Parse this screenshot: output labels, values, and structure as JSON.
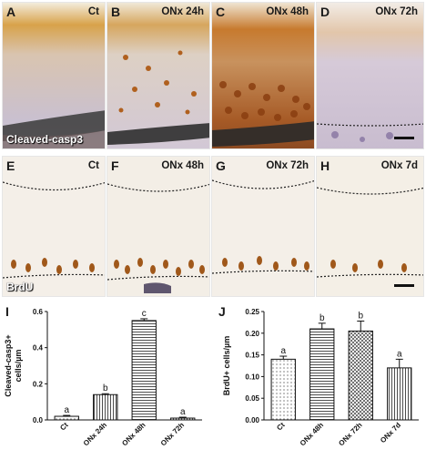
{
  "figure": {
    "row1": {
      "stain": "Cleaved-casp3",
      "panels": [
        {
          "letter": "A",
          "condition": "Ct"
        },
        {
          "letter": "B",
          "condition": "ONx 24h"
        },
        {
          "letter": "C",
          "condition": "ONx 48h"
        },
        {
          "letter": "D",
          "condition": "ONx 72h"
        }
      ]
    },
    "row2": {
      "stain": "BrdU",
      "panels": [
        {
          "letter": "E",
          "condition": "Ct"
        },
        {
          "letter": "F",
          "condition": "ONx 48h"
        },
        {
          "letter": "G",
          "condition": "ONx 72h"
        },
        {
          "letter": "H",
          "condition": "ONx 7d"
        }
      ]
    }
  },
  "chart_data": [
    {
      "letter": "I",
      "type": "bar",
      "categories": [
        "Ct",
        "ONx 24h",
        "ONx 48h",
        "ONx 72h"
      ],
      "values": [
        0.02,
        0.14,
        0.55,
        0.01
      ],
      "errors": [
        0.005,
        0.005,
        0.01,
        0.005
      ],
      "significance": [
        "a",
        "b",
        "c",
        "a"
      ],
      "patterns": [
        "dots",
        "vertical",
        "horizontal",
        "vertical"
      ],
      "ylabel_lines": [
        "Cleaved-casp3+",
        "cells/µm"
      ],
      "ylim": [
        0,
        0.6
      ],
      "yticks": [
        0.0,
        0.2,
        0.4,
        0.6
      ],
      "ytick_labels": [
        "0.0",
        "0.2",
        "0.4",
        "0.6"
      ]
    },
    {
      "letter": "J",
      "type": "bar",
      "categories": [
        "Ct",
        "ONx 48h",
        "ONx 72h",
        "ONx 7d"
      ],
      "values": [
        0.14,
        0.21,
        0.205,
        0.12
      ],
      "errors": [
        0.007,
        0.013,
        0.023,
        0.02
      ],
      "significance": [
        "a",
        "b",
        "b",
        "a"
      ],
      "patterns": [
        "dots",
        "horizontal",
        "crosshatch",
        "vertical"
      ],
      "ylabel_lines": [
        "BrdU+ cells/µm"
      ],
      "ylim": [
        0,
        0.25
      ],
      "yticks": [
        0.0,
        0.05,
        0.1,
        0.15,
        0.2,
        0.25
      ],
      "ytick_labels": [
        "0.00",
        "0.05",
        "0.10",
        "0.15",
        "0.20",
        "0.25"
      ]
    }
  ],
  "colors": {
    "tissue_background": "#ece6ea",
    "brown_stain": "#a05a1a",
    "dark_stain": "#5a3018",
    "purple_counterstain": "#9e90b4"
  }
}
